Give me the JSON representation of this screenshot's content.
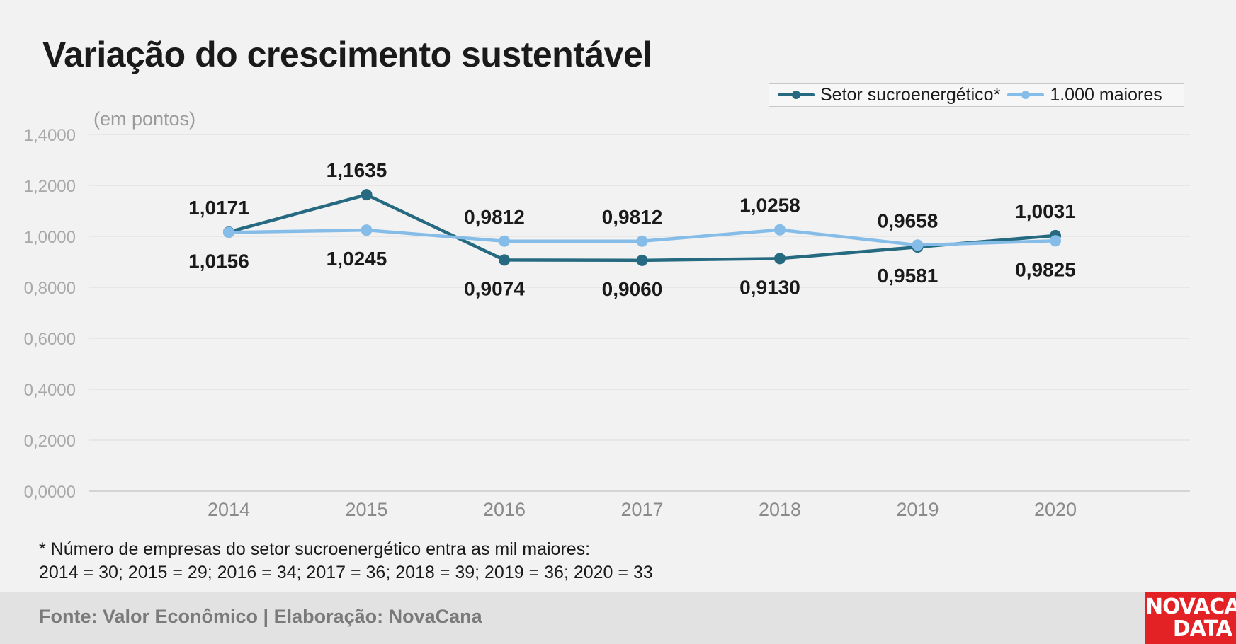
{
  "title": "Variação do crescimento sustentável",
  "unit_label": "(em pontos)",
  "note": {
    "line1": "* Número de empresas do setor sucroenergético entra as mil maiores:",
    "line2": "2014 = 30; 2015 = 29; 2016 = 34; 2017 = 36; 2018 = 39; 2019 = 36; 2020 = 33"
  },
  "source": "Fonte: Valor Econômico | Elaboração: NovaCana",
  "logo": {
    "line1": "NOVACANA",
    "line2": "DATA"
  },
  "colors": {
    "setor": "#256a80",
    "maiores": "#86bde8",
    "grid": "#dcdcdc",
    "axis_text": "#a9a9a9",
    "label_text": "#1a1a1a",
    "logo_bg": "#e32226"
  },
  "chart_data": {
    "type": "line",
    "categories": [
      "2014",
      "2015",
      "2016",
      "2017",
      "2018",
      "2019",
      "2020"
    ],
    "ylim": [
      0,
      1.4
    ],
    "yticks": [
      "0,0000",
      "0,2000",
      "0,4000",
      "0,6000",
      "0,8000",
      "1,0000",
      "1,2000",
      "1,4000"
    ],
    "ytick_values": [
      0,
      0.2,
      0.4,
      0.6,
      0.8,
      1.0,
      1.2,
      1.4
    ],
    "grid": true,
    "legend_position": "top-right",
    "series": [
      {
        "name": "Setor sucroenergético*",
        "color": "#256a80",
        "values": [
          1.0171,
          1.1635,
          0.9074,
          0.906,
          0.913,
          0.9581,
          1.0031
        ],
        "labels": [
          "1,0171",
          "1,1635",
          "0,9074",
          "0,9060",
          "0,9130",
          "0,9581",
          "1,0031"
        ],
        "label_positions": [
          "above",
          "above",
          "below",
          "below",
          "below",
          "below",
          "above"
        ]
      },
      {
        "name": "1.000 maiores",
        "color": "#86bde8",
        "values": [
          1.0156,
          1.0245,
          0.9812,
          0.9812,
          1.0258,
          0.9658,
          0.9825
        ],
        "labels": [
          "1,0156",
          "1,0245",
          "0,9812",
          "0,9812",
          "1,0258",
          "0,9658",
          "0,9825"
        ],
        "label_positions": [
          "below",
          "below",
          "above",
          "above",
          "above",
          "above",
          "below"
        ]
      }
    ]
  }
}
